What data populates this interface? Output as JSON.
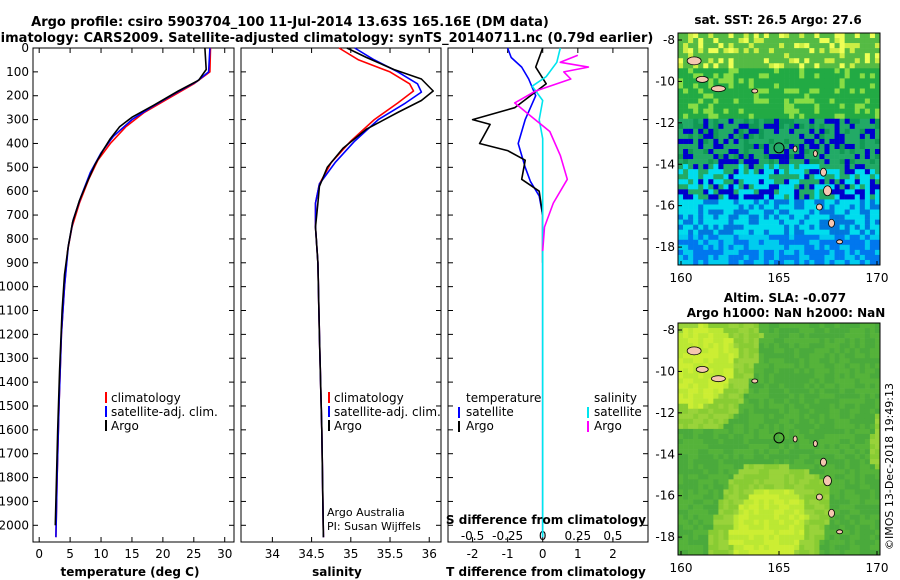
{
  "title": {
    "line1": "Argo profile: csiro 5903704_100 11-Jul-2014 13.63S 165.16E (DM data)",
    "line2": "Climatology: CARS2009. Satellite-adjusted climatology: synTS_20140711.nc (0.79d earlier)"
  },
  "colors": {
    "climatology": "#ff0000",
    "satellite": "#0000ff",
    "argo": "#000000",
    "sat_salinity": "#00e5ee",
    "argo_salinity_diff": "#ff00ff"
  },
  "chart_data": [
    {
      "type": "line",
      "xlabel": "temperature (deg C)",
      "ylabel": "",
      "xlim": [
        -1,
        31.5
      ],
      "ylim": [
        2070,
        0
      ],
      "xticks": [
        0,
        5,
        10,
        15,
        20,
        25,
        30
      ],
      "yticks": [
        0,
        100,
        200,
        300,
        400,
        500,
        600,
        700,
        800,
        900,
        1000,
        1100,
        1200,
        1300,
        1400,
        1500,
        1600,
        1700,
        1800,
        1900,
        2000
      ],
      "legend": {
        "position": "bottom-center",
        "entries": [
          "climatology",
          "satellite-adj. clim.",
          "Argo"
        ]
      },
      "series": [
        {
          "name": "climatology",
          "color": "#ff0000",
          "points": [
            [
              27.7,
              0
            ],
            [
              27.6,
              100
            ],
            [
              25,
              150
            ],
            [
              21,
              210
            ],
            [
              17,
              270
            ],
            [
              14,
              330
            ],
            [
              11.5,
              400
            ],
            [
              9.5,
              470
            ],
            [
              8,
              550
            ],
            [
              6.5,
              650
            ],
            [
              5.3,
              750
            ],
            [
              4.6,
              850
            ],
            [
              4.1,
              1000
            ],
            [
              3.6,
              1200
            ],
            [
              3.2,
              1500
            ],
            [
              2.9,
              1800
            ],
            [
              2.7,
              2050
            ]
          ]
        },
        {
          "name": "satellite-adj. clim.",
          "color": "#0000ff",
          "points": [
            [
              27.6,
              0
            ],
            [
              27.4,
              100
            ],
            [
              25.5,
              140
            ],
            [
              22,
              190
            ],
            [
              18,
              250
            ],
            [
              15,
              300
            ],
            [
              12,
              370
            ],
            [
              10,
              440
            ],
            [
              8.3,
              520
            ],
            [
              6.8,
              620
            ],
            [
              5.5,
              720
            ],
            [
              4.7,
              830
            ],
            [
              4.1,
              1000
            ],
            [
              3.6,
              1200
            ],
            [
              3.2,
              1500
            ],
            [
              2.9,
              1800
            ],
            [
              2.7,
              2050
            ]
          ]
        },
        {
          "name": "Argo",
          "color": "#000000",
          "points": [
            [
              26.8,
              0
            ],
            [
              27,
              90
            ],
            [
              25.8,
              135
            ],
            [
              22.5,
              180
            ],
            [
              18.5,
              240
            ],
            [
              15,
              290
            ],
            [
              13,
              330
            ],
            [
              11.5,
              380
            ],
            [
              10.3,
              430
            ],
            [
              9,
              490
            ],
            [
              7.8,
              560
            ],
            [
              6.5,
              640
            ],
            [
              5.4,
              730
            ],
            [
              4.7,
              830
            ],
            [
              4.1,
              950
            ],
            [
              3.7,
              1100
            ],
            [
              3.3,
              1350
            ],
            [
              3.0,
              1600
            ],
            [
              2.8,
              1800
            ],
            [
              2.6,
              2000
            ]
          ]
        }
      ]
    },
    {
      "type": "line",
      "xlabel": "salinity",
      "ylabel": "",
      "xlim": [
        33.6,
        36.15
      ],
      "ylim": [
        2070,
        0
      ],
      "xticks": [
        34,
        34.5,
        35,
        35.5,
        36
      ],
      "xticklabels": [
        "34",
        "34.5",
        "35",
        "35.5",
        "36"
      ],
      "legend": {
        "position": "bottom-center",
        "entries": [
          "climatology",
          "satellite-adj. clim.",
          "Argo"
        ]
      },
      "annotations": [
        "Argo Australia",
        "PI: Susan Wijffels"
      ],
      "series": [
        {
          "name": "climatology",
          "color": "#ff0000",
          "points": [
            [
              34.85,
              0
            ],
            [
              35.1,
              50
            ],
            [
              35.5,
              100
            ],
            [
              35.75,
              150
            ],
            [
              35.8,
              180
            ],
            [
              35.6,
              230
            ],
            [
              35.3,
              300
            ],
            [
              35,
              390
            ],
            [
              34.75,
              480
            ],
            [
              34.6,
              570
            ],
            [
              34.55,
              650
            ],
            [
              34.55,
              750
            ],
            [
              34.58,
              900
            ],
            [
              34.6,
              1200
            ],
            [
              34.63,
              1600
            ],
            [
              34.65,
              2050
            ]
          ]
        },
        {
          "name": "satellite-adj. clim.",
          "color": "#0000ff",
          "points": [
            [
              35.05,
              0
            ],
            [
              35.3,
              50
            ],
            [
              35.6,
              100
            ],
            [
              35.85,
              150
            ],
            [
              35.9,
              185
            ],
            [
              35.7,
              230
            ],
            [
              35.35,
              300
            ],
            [
              35.05,
              390
            ],
            [
              34.8,
              480
            ],
            [
              34.6,
              570
            ],
            [
              34.55,
              650
            ],
            [
              34.55,
              750
            ],
            [
              34.58,
              900
            ],
            [
              34.6,
              1200
            ],
            [
              34.63,
              1600
            ],
            [
              34.65,
              2050
            ]
          ]
        },
        {
          "name": "Argo",
          "color": "#000000",
          "points": [
            [
              34.95,
              0
            ],
            [
              35.2,
              40
            ],
            [
              35.55,
              90
            ],
            [
              35.9,
              130
            ],
            [
              36.05,
              180
            ],
            [
              35.9,
              220
            ],
            [
              35.6,
              270
            ],
            [
              35.2,
              340
            ],
            [
              34.9,
              420
            ],
            [
              34.7,
              500
            ],
            [
              34.6,
              580
            ],
            [
              34.58,
              650
            ],
            [
              34.55,
              750
            ],
            [
              34.58,
              900
            ],
            [
              34.6,
              1200
            ],
            [
              34.63,
              1600
            ],
            [
              34.65,
              2050
            ]
          ]
        }
      ]
    },
    {
      "type": "line",
      "xlabel": "T difference from climatology",
      "ylabel": "",
      "xlim": [
        -2.7,
        3.0
      ],
      "ylim": [
        2070,
        0
      ],
      "xticks": [
        -2,
        -1,
        0,
        1,
        2
      ],
      "x2label": "S difference from climatology",
      "x2ticks": [
        -0.5,
        -0.25,
        0,
        0.25,
        0.5
      ],
      "x2ticklabels": [
        "-0.5",
        "-0.25",
        "0",
        "0.25",
        "0.5"
      ],
      "legend": {
        "position": "bottom",
        "entries": [
          "temperature",
          "satellite",
          "Argo",
          "salinity",
          "satellite",
          "Argo"
        ]
      },
      "series": [
        {
          "name": "satellite",
          "color": "#0000ff",
          "points": [
            [
              -1,
              0
            ],
            [
              -0.9,
              40
            ],
            [
              -0.6,
              80
            ],
            [
              -0.4,
              130
            ],
            [
              -0.2,
              200
            ],
            [
              -0.5,
              300
            ],
            [
              -0.7,
              400
            ],
            [
              -0.5,
              500
            ],
            [
              -0.35,
              560
            ],
            [
              -0.1,
              620
            ],
            [
              0,
              700
            ],
            [
              0,
              1200
            ],
            [
              0,
              2050
            ]
          ]
        },
        {
          "name": "Argo",
          "color": "#000000",
          "points": [
            [
              0,
              0
            ],
            [
              -0.2,
              80
            ],
            [
              0.1,
              150
            ],
            [
              -0.8,
              250
            ],
            [
              -2,
              300
            ],
            [
              -1.5,
              320
            ],
            [
              -1.8,
              400
            ],
            [
              -1,
              430
            ],
            [
              -0.5,
              470
            ],
            [
              -0.6,
              550
            ],
            [
              -0.1,
              600
            ],
            [
              0,
              700
            ],
            [
              0,
              900
            ]
          ]
        },
        {
          "name": "satellite",
          "color": "#00e5ee",
          "points": [
            [
              0.5,
              0
            ],
            [
              0.4,
              60
            ],
            [
              0.1,
              120
            ],
            [
              -0.3,
              160
            ],
            [
              0,
              220
            ],
            [
              -0.1,
              300
            ],
            [
              0,
              380
            ],
            [
              0,
              500
            ],
            [
              0,
              700
            ],
            [
              0,
              1200
            ],
            [
              0,
              2050
            ]
          ]
        },
        {
          "name": "Argo",
          "color": "#ff00ff",
          "points": [
            [
              1,
              30
            ],
            [
              0.5,
              60
            ],
            [
              1.3,
              80
            ],
            [
              0.6,
              100
            ],
            [
              0.8,
              130
            ],
            [
              -0.2,
              180
            ],
            [
              -0.8,
              230
            ],
            [
              -0.3,
              290
            ],
            [
              0.2,
              350
            ],
            [
              0.5,
              450
            ],
            [
              0.7,
              550
            ],
            [
              0.3,
              650
            ],
            [
              0.05,
              750
            ],
            [
              0,
              850
            ]
          ]
        }
      ]
    }
  ],
  "maps": [
    {
      "title": "sat. SST: 26.5 Argo: 27.6",
      "xticks": [
        "160",
        "165",
        "170"
      ],
      "yticks": [
        "-8",
        "-10",
        "-12",
        "-14",
        "-16",
        "-18"
      ]
    },
    {
      "title_line1": "Altim. SLA: -0.077",
      "title_line2": "Argo h1000: NaN h2000: NaN",
      "xticks": [
        "160",
        "165",
        "170"
      ],
      "yticks": [
        "-8",
        "-10",
        "-12",
        "-14",
        "-16",
        "-18"
      ],
      "credit": "©IMOS 13-Dec-2018 19:49:13"
    }
  ]
}
